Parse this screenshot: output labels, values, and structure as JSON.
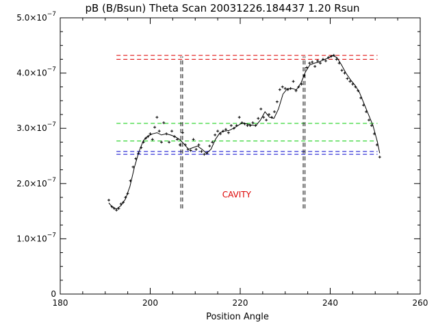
{
  "chart_data": {
    "type": "scatter",
    "title": "pB (B/Bsun) Theta Scan 20031226.184437 1.20 Rsun",
    "xlabel": "Position Angle",
    "ylabel": "",
    "xlim": [
      180,
      260
    ],
    "ylim": [
      0,
      5e-07
    ],
    "x_ticks": [
      180,
      200,
      220,
      240,
      260
    ],
    "x_tick_labels": [
      "180",
      "200",
      "220",
      "240",
      "260"
    ],
    "x_minor_step": 5,
    "y_ticks": [
      0,
      1e-07,
      2e-07,
      3e-07,
      4e-07,
      5e-07
    ],
    "y_tick_labels": [
      {
        "mant": "0",
        "exp": ""
      },
      {
        "mant": "1.0×10",
        "exp": "−7"
      },
      {
        "mant": "2.0×10",
        "exp": "−7"
      },
      {
        "mant": "3.0×10",
        "exp": "−7"
      },
      {
        "mant": "4.0×10",
        "exp": "−7"
      },
      {
        "mant": "5.0×10",
        "exp": "−7"
      }
    ],
    "y_minor_step": 2.5e-08,
    "grid": false,
    "series": [
      {
        "style": "points",
        "marker": "+",
        "color": "#000000",
        "x": [
          190.8,
          191.5,
          192.0,
          192.5,
          193.0,
          193.5,
          194.0,
          194.5,
          195.0,
          195.6,
          196.2,
          196.8,
          197.4,
          198.0,
          198.5,
          199.0,
          199.5,
          200.0,
          200.5,
          201.0,
          201.5,
          202.0,
          202.5,
          203.0,
          203.6,
          204.2,
          204.8,
          205.4,
          206.0,
          206.6,
          207.2,
          207.8,
          208.4,
          209.0,
          209.6,
          210.2,
          210.8,
          211.4,
          212.0,
          212.6,
          213.2,
          213.8,
          214.4,
          215.0,
          215.6,
          216.2,
          216.8,
          217.4,
          218.0,
          218.6,
          219.2,
          219.8,
          220.4,
          221.0,
          221.6,
          222.2,
          222.8,
          223.4,
          224.0,
          224.6,
          225.2,
          225.8,
          226.4,
          227.0,
          227.6,
          228.2,
          228.8,
          229.4,
          230.0,
          230.6,
          231.2,
          231.8,
          232.4,
          233.0,
          233.6,
          234.2,
          234.8,
          235.4,
          236.0,
          236.6,
          237.2,
          237.8,
          238.4,
          239.0,
          239.6,
          240.2,
          240.8,
          241.4,
          242.0,
          242.6,
          243.2,
          243.8,
          244.4,
          245.0,
          245.6,
          246.2,
          246.8,
          247.4,
          248.0,
          248.6,
          249.2,
          249.8,
          250.4,
          251.0
        ],
        "y": [
          1.7e-07,
          1.58e-07,
          1.55e-07,
          1.52e-07,
          1.55e-07,
          1.63e-07,
          1.66e-07,
          1.75e-07,
          1.82e-07,
          2.05e-07,
          2.3e-07,
          2.45e-07,
          2.55e-07,
          2.65e-07,
          2.75e-07,
          2.82e-07,
          2.85e-07,
          2.9e-07,
          2.8e-07,
          3.02e-07,
          3.2e-07,
          2.95e-07,
          2.75e-07,
          3.1e-07,
          2.9e-07,
          2.75e-07,
          2.95e-07,
          2.85e-07,
          2.8e-07,
          2.7e-07,
          2.92e-07,
          2.7e-07,
          2.62e-07,
          2.6e-07,
          2.8e-07,
          2.62e-07,
          2.7e-07,
          2.58e-07,
          2.53e-07,
          2.55e-07,
          2.68e-07,
          2.75e-07,
          2.88e-07,
          2.95e-07,
          2.9e-07,
          2.95e-07,
          2.98e-07,
          2.92e-07,
          3.05e-07,
          3e-07,
          3.05e-07,
          3.2e-07,
          3.1e-07,
          3.08e-07,
          3.05e-07,
          3.05e-07,
          3.1e-07,
          3.05e-07,
          3.18e-07,
          3.35e-07,
          3.2e-07,
          3.15e-07,
          3.25e-07,
          3.2e-07,
          3.3e-07,
          3.48e-07,
          3.7e-07,
          3.75e-07,
          3.72e-07,
          3.7e-07,
          3.72e-07,
          3.85e-07,
          3.68e-07,
          3.75e-07,
          3.8e-07,
          3.95e-07,
          4.1e-07,
          4.18e-07,
          4.2e-07,
          4.12e-07,
          4.22e-07,
          4.18e-07,
          4.25e-07,
          4.22e-07,
          4.28e-07,
          4.3e-07,
          4.32e-07,
          4.25e-07,
          4.18e-07,
          4.05e-07,
          4e-07,
          3.9e-07,
          3.85e-07,
          3.8e-07,
          3.75e-07,
          3.68e-07,
          3.55e-07,
          3.42e-07,
          3.3e-07,
          3.15e-07,
          3.05e-07,
          2.9e-07,
          2.7e-07,
          2.48e-07
        ]
      },
      {
        "style": "line",
        "color": "#000000",
        "x": [
          190.8,
          191.5,
          192.5,
          193.5,
          194.5,
          195.5,
          196.5,
          197.5,
          198.5,
          199.5,
          200.5,
          201.5,
          202.5,
          203.5,
          204.5,
          205.5,
          206.5,
          207.5,
          208.5,
          209.5,
          210.5,
          211.5,
          212.5,
          213.5,
          214.5,
          215.5,
          216.5,
          217.5,
          218.5,
          219.5,
          220.5,
          221.5,
          222.5,
          223.5,
          224.5,
          225.5,
          226.5,
          227.5,
          228.5,
          229.5,
          230.5,
          231.5,
          232.5,
          233.5,
          234.5,
          235.5,
          236.5,
          237.5,
          238.5,
          239.5,
          240.5,
          241.5,
          242.5,
          243.5,
          244.5,
          245.5,
          246.5,
          247.5,
          248.5,
          249.5,
          250.5,
          251.0
        ],
        "y": [
          1.65e-07,
          1.58e-07,
          1.54e-07,
          1.6e-07,
          1.72e-07,
          1.95e-07,
          2.3e-07,
          2.58e-07,
          2.78e-07,
          2.86e-07,
          2.9e-07,
          2.92e-07,
          2.88e-07,
          2.9e-07,
          2.88e-07,
          2.85e-07,
          2.8e-07,
          2.72e-07,
          2.62e-07,
          2.65e-07,
          2.68e-07,
          2.62e-07,
          2.55e-07,
          2.62e-07,
          2.8e-07,
          2.92e-07,
          2.95e-07,
          2.96e-07,
          3e-07,
          3.05e-07,
          3.1e-07,
          3.08e-07,
          3.06e-07,
          3.05e-07,
          3.15e-07,
          3.3e-07,
          3.2e-07,
          3.18e-07,
          3.35e-07,
          3.62e-07,
          3.72e-07,
          3.72e-07,
          3.7e-07,
          3.82e-07,
          4.02e-07,
          4.15e-07,
          4.18e-07,
          4.2e-07,
          4.24e-07,
          4.27e-07,
          4.32e-07,
          4.28e-07,
          4.15e-07,
          4e-07,
          3.88e-07,
          3.78e-07,
          3.65e-07,
          3.45e-07,
          3.25e-07,
          3.05e-07,
          2.75e-07,
          2.55e-07
        ]
      }
    ],
    "reference_lines": [
      {
        "y": 4.32e-07,
        "x_range": [
          192.5,
          250.5
        ],
        "color": "#dd0000",
        "dash": "dashed"
      },
      {
        "y": 4.25e-07,
        "x_range": [
          192.5,
          250.5
        ],
        "color": "#dd0000",
        "dash": "dashed"
      },
      {
        "y": 3.09e-07,
        "x_range": [
          192.5,
          250.5
        ],
        "color": "#00cc00",
        "dash": "dashed"
      },
      {
        "y": 2.77e-07,
        "x_range": [
          192.5,
          250.5
        ],
        "color": "#00cc00",
        "dash": "dashed"
      },
      {
        "y": 2.58e-07,
        "x_range": [
          192.5,
          250.5
        ],
        "color": "#0000cc",
        "dash": "dashed"
      },
      {
        "y": 2.53e-07,
        "x_range": [
          192.5,
          250.5
        ],
        "color": "#0000cc",
        "dash": "dashed"
      }
    ],
    "boundary_lines": [
      {
        "x": 206.8,
        "y_range": [
          1.55e-07,
          4.3e-07
        ],
        "color": "#000000",
        "dash": "dashed"
      },
      {
        "x": 207.2,
        "y_range": [
          1.55e-07,
          4.3e-07
        ],
        "color": "#000000",
        "dash": "dashed"
      },
      {
        "x": 234.0,
        "y_range": [
          1.55e-07,
          4.3e-07
        ],
        "color": "#000000",
        "dash": "dashed"
      },
      {
        "x": 234.4,
        "y_range": [
          1.55e-07,
          4.3e-07
        ],
        "color": "#000000",
        "dash": "dashed"
      }
    ],
    "annotations": [
      {
        "text": "CAVITY",
        "x": 216.0,
        "y": 1.75e-07,
        "color": "#dd0000"
      }
    ]
  }
}
